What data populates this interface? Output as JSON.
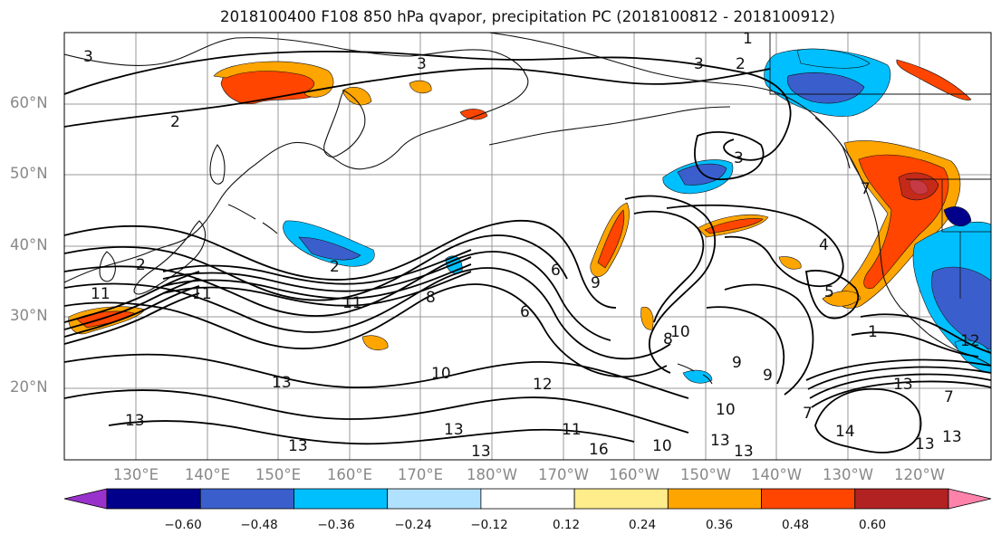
{
  "title": "2018100400 F108 850 hPa qvapor, precipitation PC (2018100812 - 2018100912)",
  "lat_labels": [
    "60°N",
    "50°N",
    "40°N",
    "30°N",
    "20°N"
  ],
  "lon_labels": [
    "130°E",
    "140°E",
    "150°E",
    "160°E",
    "170°E",
    "180°W",
    "170°W",
    "160°W",
    "150°W",
    "140°W",
    "130°W",
    "120°W"
  ],
  "colorbar": {
    "ticks": [
      "−0.60",
      "−0.48",
      "−0.36",
      "−0.24",
      "−0.12",
      "0.12",
      "0.24",
      "0.36",
      "0.48",
      "0.60"
    ],
    "colors": [
      "#9932cc",
      "#00008b",
      "#3a5fcd",
      "#00bfff",
      "#b0e2ff",
      "#ffffff",
      "#ffec8b",
      "#ffa500",
      "#ff4500",
      "#b22222",
      "#ff82ab"
    ]
  },
  "contour_labels": [
    "1",
    "2",
    "2",
    "3",
    "3",
    "3",
    "3",
    "2",
    "4",
    "5",
    "7",
    "6",
    "6",
    "9",
    "8",
    "8",
    "9",
    "10",
    "10",
    "11",
    "11",
    "12",
    "13",
    "13",
    "13",
    "13",
    "13",
    "13",
    "14",
    "13",
    "13",
    "16",
    "12",
    "7",
    "9",
    "11",
    "7",
    "10",
    "13",
    "11",
    "13",
    "1",
    "2",
    "10"
  ]
}
